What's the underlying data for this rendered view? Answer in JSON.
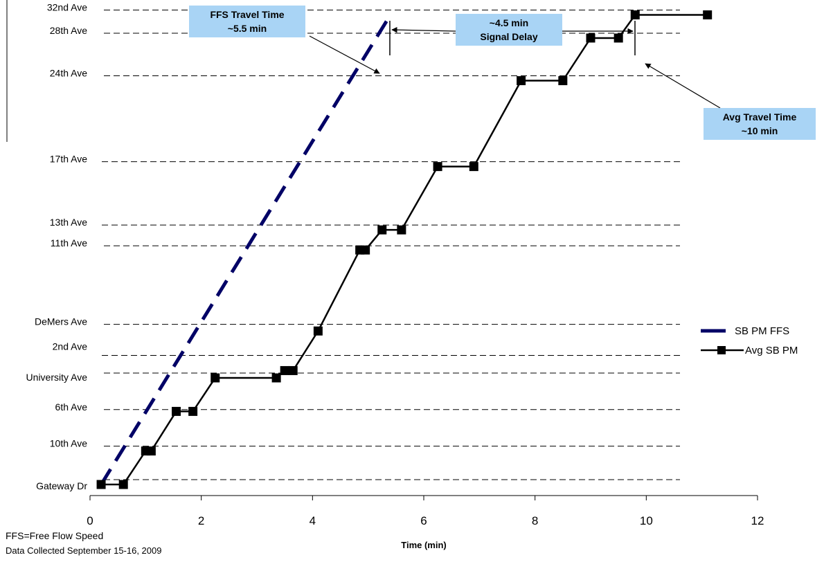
{
  "chart_data": {
    "type": "line",
    "xlabel": "Time (min)",
    "ylabel": "",
    "xlim": [
      0,
      12
    ],
    "x_ticks": [
      0,
      2,
      4,
      6,
      8,
      10,
      12
    ],
    "grid": "dashed horizontal lines at each street",
    "legend_position": "right",
    "streets": [
      "Gateway Dr",
      "10th Ave",
      "6th Ave",
      "University Ave",
      "2nd Ave",
      "DeMers Ave",
      "11th Ave",
      "13th Ave",
      "17th Ave",
      "24th Ave",
      "28th Ave",
      "32nd Ave"
    ],
    "street_level": [
      0.0,
      0.55,
      1.15,
      1.75,
      2.04,
      2.55,
      3.84,
      4.18,
      5.22,
      6.63,
      7.33,
      7.71
    ],
    "series": [
      {
        "name": "SB PM FFS",
        "color": "#000066",
        "style": "dashed",
        "x": [
          0.2,
          5.4
        ],
        "y": [
          0.0,
          7.71
        ]
      },
      {
        "name": "Avg SB PM",
        "color": "#000000",
        "style": "solid-square-markers",
        "x": [
          0.2,
          0.6,
          1.0,
          1.1,
          1.55,
          1.85,
          2.25,
          3.35,
          3.5,
          3.65,
          4.1,
          4.85,
          4.95,
          5.25,
          5.6,
          6.25,
          6.9,
          7.75,
          8.5,
          9.0,
          9.5,
          9.8,
          11.1
        ],
        "y": [
          0.0,
          0.0,
          0.55,
          0.55,
          1.2,
          1.2,
          1.75,
          1.75,
          1.87,
          1.87,
          2.52,
          3.85,
          3.85,
          4.18,
          4.18,
          5.22,
          5.22,
          6.63,
          6.63,
          7.33,
          7.33,
          7.71,
          7.71
        ]
      }
    ]
  },
  "annotations": {
    "ffs_travel_time": [
      "FFS Travel Time",
      "~5.5 min"
    ],
    "signal_delay": [
      "~4.5 min",
      "Signal Delay"
    ],
    "avg_travel_time": [
      "Avg Travel Time",
      "~10 min"
    ]
  },
  "footnotes": {
    "line1": "FFS=Free Flow Speed",
    "line2": "Data Collected September 15-16, 2009"
  },
  "colors": {
    "callout_fill": "#a9d4f5",
    "ffs_line": "#000066",
    "avg_line": "#000000"
  }
}
